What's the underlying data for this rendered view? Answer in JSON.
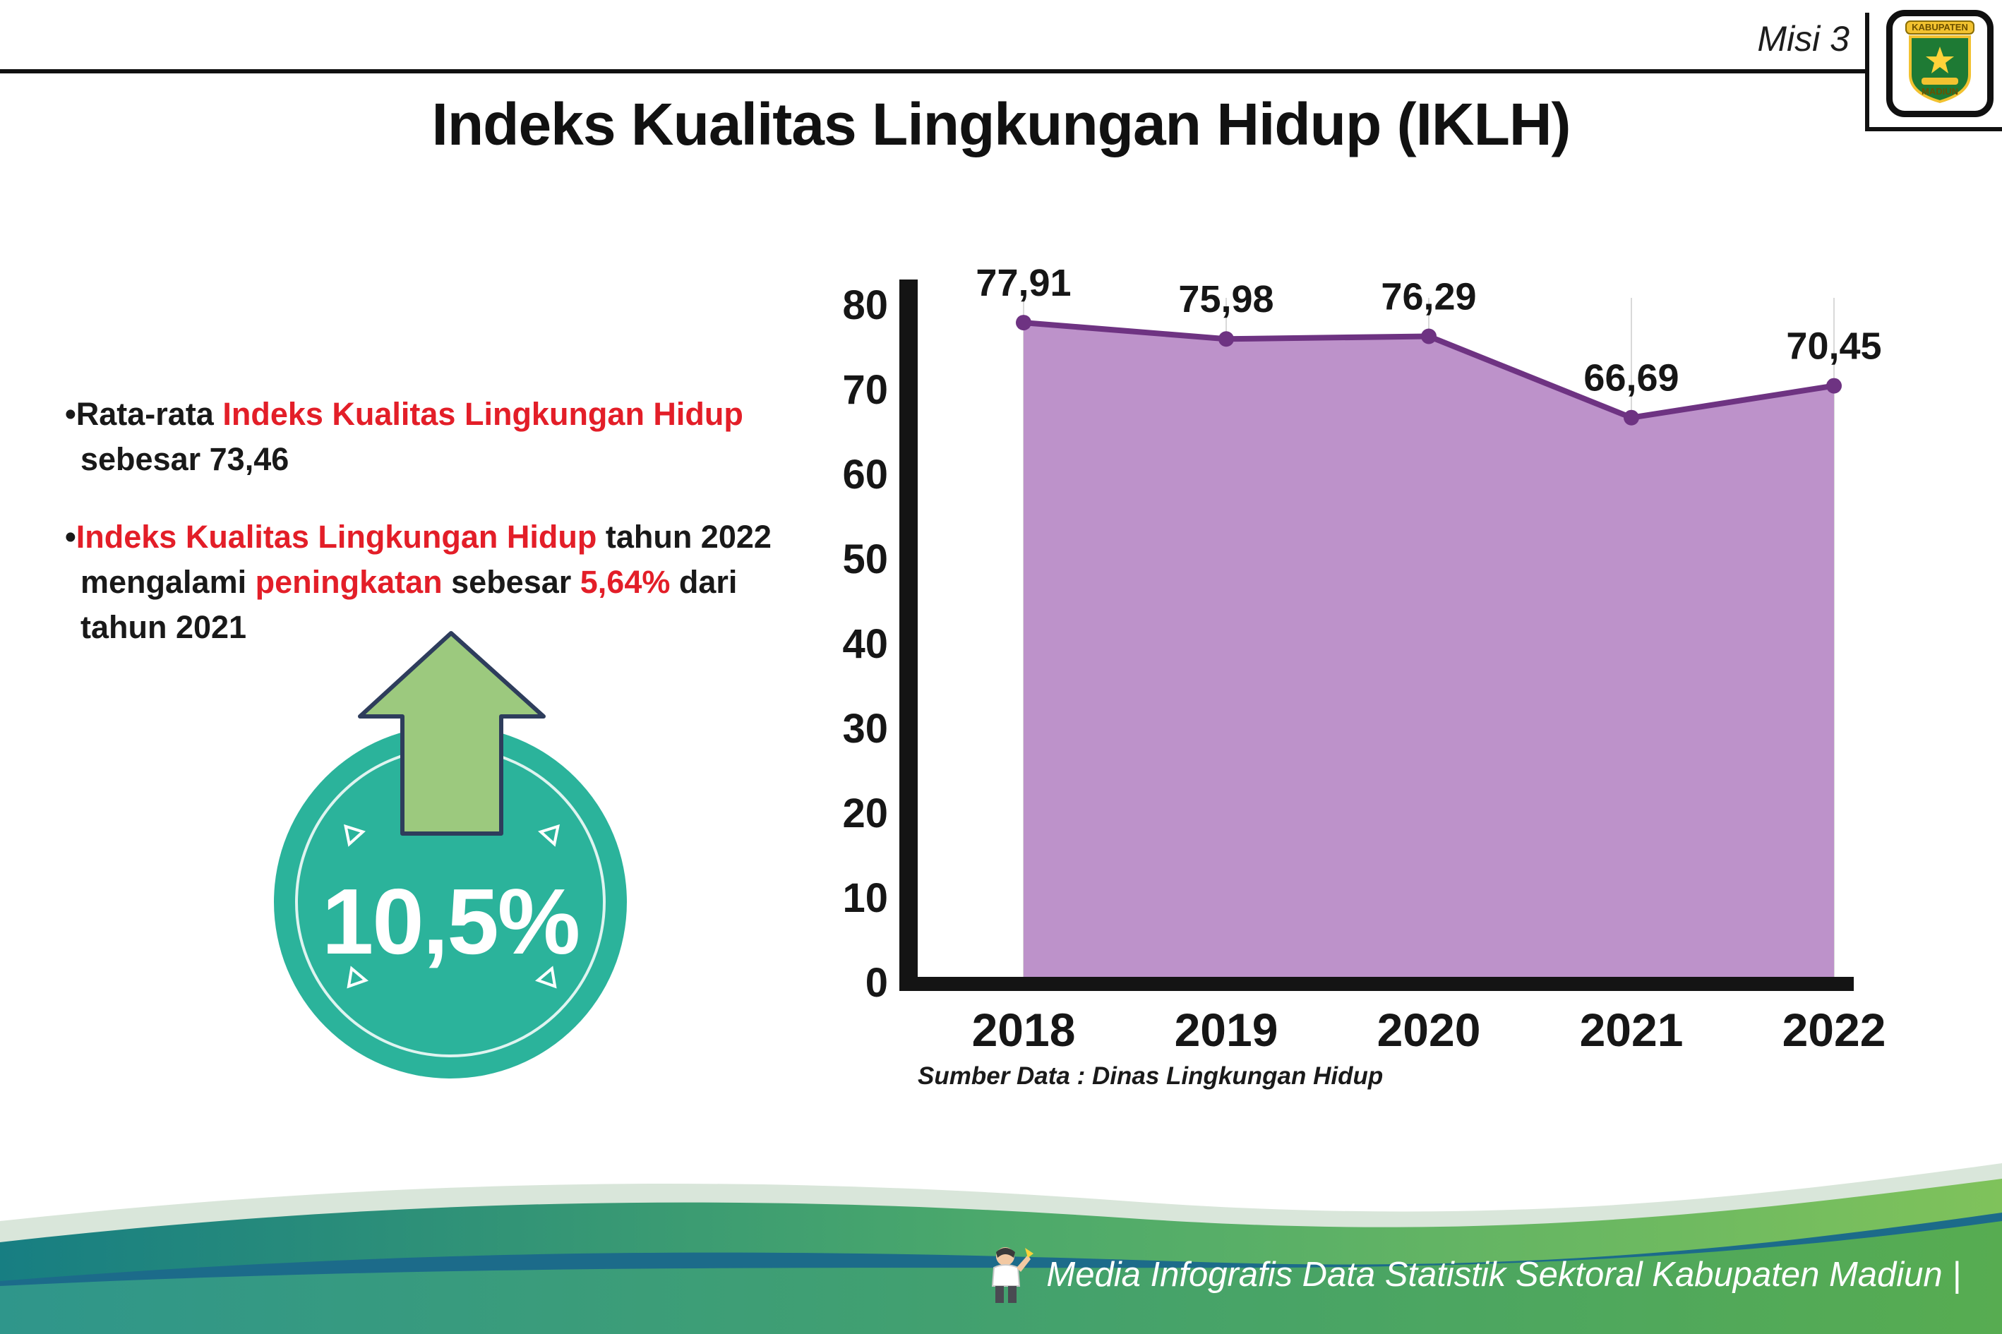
{
  "header": {
    "misi": "Misi 3",
    "title": "Indeks Kualitas Lingkungan Hidup (IKLH)",
    "logo": {
      "text_top": "KABUPATEN",
      "text_bottom": "MADIUN"
    }
  },
  "bullet_char": "•",
  "bullets": [
    {
      "segments": [
        {
          "text": "Rata-rata ",
          "color": "black"
        },
        {
          "text": "Indeks Kualitas Lingkungan Hidup",
          "color": "red"
        },
        {
          "text": " sebesar 73,46",
          "color": "black"
        }
      ]
    },
    {
      "segments": [
        {
          "text": "Indeks Kualitas Lingkungan Hidup",
          "color": "red"
        },
        {
          "text": " tahun 2022 mengalami ",
          "color": "black"
        },
        {
          "text": "peningkatan",
          "color": "red"
        },
        {
          "text": " sebesar ",
          "color": "black"
        },
        {
          "text": "5,64%",
          "color": "red"
        },
        {
          "text": " dari tahun 2021",
          "color": "black"
        }
      ]
    }
  ],
  "badge": {
    "value": "10,5%",
    "circle_color": "#2bb39b",
    "arrow_color": "#9cc97e"
  },
  "chart_data": {
    "type": "area",
    "title": "Indeks Kualitas Lingkungan Hidup (IKLH)",
    "categories": [
      "2018",
      "2019",
      "2020",
      "2021",
      "2022"
    ],
    "values": [
      77.91,
      75.98,
      76.29,
      66.69,
      70.45
    ],
    "value_labels": [
      "77,91",
      "75,98",
      "76,29",
      "66,69",
      "70,45"
    ],
    "yticks": [
      "0",
      "10",
      "20",
      "30",
      "40",
      "50",
      "60",
      "70",
      "80"
    ],
    "ylim": [
      0,
      80
    ],
    "ytick_step": 10,
    "grid": true,
    "legend": "none",
    "line_color": "#6e3382",
    "fill_color": "#bd92ca",
    "source": "Sumber Data : Dinas Lingkungan Hidup"
  },
  "footer": {
    "text": "Media Infografis Data Statistik Sektoral Kabupaten Madiun |"
  }
}
